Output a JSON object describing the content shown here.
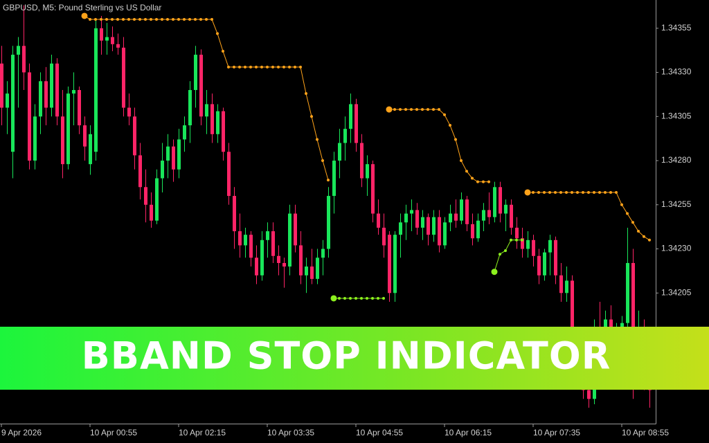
{
  "chart_data": {
    "type": "candlestick",
    "title": "GBPUSD, M5:  Pound Sterling vs US Dollar",
    "bull_color": "#19e65a",
    "bear_color": "#ff2467",
    "ylim": [
      1.34131,
      1.34371
    ],
    "yticks": [
      1.34355,
      {
        "value": 1.3433,
        "label": "1.34330"
      },
      1.34305,
      {
        "value": 1.3428,
        "label": "1.34280"
      },
      1.34255,
      {
        "value": 1.3423,
        "label": "1.34230"
      },
      1.34205
    ],
    "xticks": [
      {
        "value": 0,
        "label": "9 Apr 2026"
      },
      {
        "value": 16,
        "label": "10 Apr 00:55"
      },
      {
        "value": 32,
        "label": "10 Apr 02:15"
      },
      {
        "value": 48,
        "label": "10 Apr 03:35"
      },
      {
        "value": 64,
        "label": "10 Apr 04:55"
      },
      {
        "value": 80,
        "label": "10 Apr 06:15"
      },
      {
        "value": 96,
        "label": "10 Apr 07:35"
      },
      {
        "value": 112,
        "label": "10 Apr 08:55"
      }
    ],
    "candles": [
      [
        1.34335,
        1.34345,
        1.343,
        1.3431
      ],
      [
        1.3431,
        1.34325,
        1.34295,
        1.34318
      ],
      [
        1.34285,
        1.34345,
        1.3427,
        1.3434
      ],
      [
        1.3434,
        1.3435,
        1.3431,
        1.34345
      ],
      [
        1.34345,
        1.34368,
        1.3432,
        1.3433
      ],
      [
        1.3433,
        1.34335,
        1.34275,
        1.3428
      ],
      [
        1.3428,
        1.34312,
        1.34275,
        1.34305
      ],
      [
        1.34305,
        1.3433,
        1.34295,
        1.34325
      ],
      [
        1.34325,
        1.34333,
        1.343,
        1.3431
      ],
      [
        1.3431,
        1.3434,
        1.34305,
        1.34335
      ],
      [
        1.34335,
        1.34338,
        1.343,
        1.34305
      ],
      [
        1.34305,
        1.3432,
        1.3427,
        1.34278
      ],
      [
        1.34278,
        1.34322,
        1.34275,
        1.34318
      ],
      [
        1.34318,
        1.3433,
        1.343,
        1.3432
      ],
      [
        1.3432,
        1.34322,
        1.34295,
        1.343
      ],
      [
        1.343,
        1.34305,
        1.3428,
        1.34288
      ],
      [
        1.34278,
        1.343,
        1.34272,
        1.34295
      ],
      [
        1.34285,
        1.3436,
        1.3428,
        1.34355
      ],
      [
        1.34355,
        1.34362,
        1.3434,
        1.34348
      ],
      [
        1.34348,
        1.34358,
        1.3434,
        1.3435
      ],
      [
        1.3435,
        1.34356,
        1.34342,
        1.34346
      ],
      [
        1.34346,
        1.34352,
        1.3434,
        1.34344
      ],
      [
        1.34344,
        1.3435,
        1.34305,
        1.3431
      ],
      [
        1.3431,
        1.34318,
        1.343,
        1.34305
      ],
      [
        1.34305,
        1.3431,
        1.34275,
        1.34283
      ],
      [
        1.34283,
        1.3429,
        1.34258,
        1.34265
      ],
      [
        1.34265,
        1.34275,
        1.34245,
        1.34255
      ],
      [
        1.34255,
        1.34262,
        1.34242,
        1.34246
      ],
      [
        1.34246,
        1.34275,
        1.34244,
        1.3427
      ],
      [
        1.3427,
        1.3429,
        1.34262,
        1.3428
      ],
      [
        1.3428,
        1.34295,
        1.3427,
        1.34288
      ],
      [
        1.34288,
        1.34292,
        1.34268,
        1.34275
      ],
      [
        1.34275,
        1.34298,
        1.3427,
        1.34292
      ],
      [
        1.34292,
        1.34305,
        1.34285,
        1.343
      ],
      [
        1.343,
        1.34325,
        1.3429,
        1.3432
      ],
      [
        1.3432,
        1.34345,
        1.3431,
        1.3434
      ],
      [
        1.3434,
        1.34343,
        1.343,
        1.34305
      ],
      [
        1.34305,
        1.3432,
        1.34295,
        1.34312
      ],
      [
        1.34312,
        1.34318,
        1.3429,
        1.34295
      ],
      [
        1.34295,
        1.34312,
        1.3429,
        1.34308
      ],
      [
        1.34308,
        1.3431,
        1.3428,
        1.34285
      ],
      [
        1.34285,
        1.3429,
        1.34255,
        1.3426
      ],
      [
        1.3426,
        1.34265,
        1.3423,
        1.3424
      ],
      [
        1.3424,
        1.3425,
        1.34225,
        1.34232
      ],
      [
        1.34232,
        1.34242,
        1.34225,
        1.34238
      ],
      [
        1.34238,
        1.3424,
        1.3422,
        1.34225
      ],
      [
        1.34225,
        1.34232,
        1.3421,
        1.34215
      ],
      [
        1.34215,
        1.3424,
        1.34212,
        1.34235
      ],
      [
        1.34235,
        1.34245,
        1.34225,
        1.3424
      ],
      [
        1.3424,
        1.34245,
        1.34222,
        1.34226
      ],
      [
        1.34226,
        1.34232,
        1.34215,
        1.34222
      ],
      [
        1.34222,
        1.34225,
        1.34208,
        1.3422
      ],
      [
        1.3422,
        1.34255,
        1.34215,
        1.3425
      ],
      [
        1.3425,
        1.34255,
        1.34228,
        1.34232
      ],
      [
        1.34232,
        1.3424,
        1.3421,
        1.34215
      ],
      [
        1.34215,
        1.34225,
        1.34205,
        1.3422
      ],
      [
        1.3422,
        1.3423,
        1.3421,
        1.34213
      ],
      [
        1.34213,
        1.3423,
        1.3421,
        1.34225
      ],
      [
        1.34225,
        1.34235,
        1.34215,
        1.3423
      ],
      [
        1.3423,
        1.34265,
        1.34225,
        1.3426
      ],
      [
        1.3426,
        1.34285,
        1.3425,
        1.3428
      ],
      [
        1.3428,
        1.34298,
        1.3427,
        1.3429
      ],
      [
        1.3429,
        1.34305,
        1.3428,
        1.34298
      ],
      [
        1.34298,
        1.34318,
        1.3429,
        1.34312
      ],
      [
        1.34312,
        1.34315,
        1.34285,
        1.3429
      ],
      [
        1.3429,
        1.34295,
        1.34265,
        1.3427
      ],
      [
        1.3427,
        1.34283,
        1.3426,
        1.34278
      ],
      [
        1.34278,
        1.3428,
        1.34245,
        1.3425
      ],
      [
        1.3425,
        1.34258,
        1.34238,
        1.34242
      ],
      [
        1.34242,
        1.3425,
        1.34225,
        1.34232
      ],
      [
        1.34238,
        1.3424,
        1.342,
        1.34205
      ],
      [
        1.34205,
        1.3424,
        1.342,
        1.34238
      ],
      [
        1.34238,
        1.3425,
        1.34225,
        1.34245
      ],
      [
        1.34245,
        1.34255,
        1.34235,
        1.3425
      ],
      [
        1.3425,
        1.34258,
        1.3424,
        1.34252
      ],
      [
        1.34252,
        1.34256,
        1.34238,
        1.34242
      ],
      [
        1.34242,
        1.34252,
        1.34235,
        1.34248
      ],
      [
        1.34248,
        1.3425,
        1.34232,
        1.34238
      ],
      [
        1.34238,
        1.34252,
        1.34234,
        1.34248
      ],
      [
        1.34248,
        1.34252,
        1.34228,
        1.34232
      ],
      [
        1.34232,
        1.34248,
        1.3423,
        1.34245
      ],
      [
        1.34245,
        1.34255,
        1.3424,
        1.3425
      ],
      [
        1.3425,
        1.34258,
        1.34242,
        1.34246
      ],
      [
        1.34246,
        1.34262,
        1.34244,
        1.34258
      ],
      [
        1.34258,
        1.3426,
        1.3424,
        1.34244
      ],
      [
        1.34244,
        1.3425,
        1.34232,
        1.34236
      ],
      [
        1.34236,
        1.3425,
        1.34234,
        1.34246
      ],
      [
        1.34246,
        1.34256,
        1.3424,
        1.34252
      ],
      [
        1.34252,
        1.34262,
        1.34244,
        1.34248
      ],
      [
        1.34248,
        1.34268,
        1.34245,
        1.34265
      ],
      [
        1.34265,
        1.34268,
        1.34245,
        1.3425
      ],
      [
        1.3425,
        1.34258,
        1.3424,
        1.34255
      ],
      [
        1.34255,
        1.34258,
        1.34238,
        1.34242
      ],
      [
        1.34242,
        1.34248,
        1.3423,
        1.34236
      ],
      [
        1.34236,
        1.34242,
        1.34225,
        1.3423
      ],
      [
        1.3423,
        1.3424,
        1.34225,
        1.34235
      ],
      [
        1.34235,
        1.34238,
        1.3422,
        1.34226
      ],
      [
        1.34226,
        1.3423,
        1.3421,
        1.34215
      ],
      [
        1.34215,
        1.3423,
        1.34212,
        1.34228
      ],
      [
        1.34228,
        1.34238,
        1.34215,
        1.34235
      ],
      [
        1.34235,
        1.34237,
        1.3421,
        1.34215
      ],
      [
        1.34215,
        1.34222,
        1.342,
        1.34205
      ],
      [
        1.34205,
        1.3422,
        1.342,
        1.34212
      ],
      [
        1.34212,
        1.34215,
        1.3417,
        1.34175
      ],
      [
        1.34175,
        1.34185,
        1.34155,
        1.3416
      ],
      [
        1.3416,
        1.3417,
        1.34145,
        1.3415
      ],
      [
        1.3415,
        1.34165,
        1.3414,
        1.34145
      ],
      [
        1.34145,
        1.3419,
        1.34142,
        1.34185
      ],
      [
        1.34185,
        1.342,
        1.3417,
        1.34178
      ],
      [
        1.34178,
        1.34195,
        1.34172,
        1.3419
      ],
      [
        1.3419,
        1.34198,
        1.34175,
        1.34182
      ],
      [
        1.34182,
        1.34188,
        1.3417,
        1.34185
      ],
      [
        1.34185,
        1.34192,
        1.34178,
        1.34188
      ],
      [
        1.34188,
        1.34242,
        1.34185,
        1.34222
      ],
      [
        1.34222,
        1.3423,
        1.34145,
        1.3418
      ],
      [
        1.3418,
        1.34195,
        1.3416,
        1.34185
      ],
      [
        1.34185,
        1.3419,
        1.3415,
        1.3417
      ],
      [
        1.3417,
        1.34175,
        1.3414,
        1.3415
      ]
    ],
    "upper_stop": {
      "color": "#ffa31a",
      "values": [
        null,
        null,
        null,
        null,
        null,
        null,
        null,
        null,
        null,
        null,
        null,
        null,
        null,
        null,
        null,
        1.34362,
        1.3436,
        1.3436,
        1.3436,
        1.3436,
        1.3436,
        1.3436,
        1.3436,
        1.3436,
        1.3436,
        1.3436,
        1.3436,
        1.3436,
        1.3436,
        1.3436,
        1.3436,
        1.3436,
        1.3436,
        1.3436,
        1.3436,
        1.3436,
        1.3436,
        1.3436,
        1.3436,
        1.34352,
        1.34342,
        1.34333,
        1.34333,
        1.34333,
        1.34333,
        1.34333,
        1.34333,
        1.34333,
        1.34333,
        1.34333,
        1.34333,
        1.34333,
        1.34333,
        1.34333,
        1.34333,
        1.34318,
        1.34305,
        1.34292,
        1.3428,
        1.34269,
        null,
        null,
        null,
        null,
        null,
        null,
        null,
        null,
        null,
        null,
        1.34309,
        1.34309,
        1.34309,
        1.34309,
        1.34309,
        1.34309,
        1.34309,
        1.34309,
        1.34309,
        1.34309,
        1.34306,
        1.343,
        1.34292,
        1.3428,
        1.34274,
        1.3427,
        1.34268,
        1.34268,
        1.34268,
        null,
        null,
        null,
        null,
        null,
        null,
        1.34262,
        1.34262,
        1.34262,
        1.34262,
        1.34262,
        1.34262,
        1.34262,
        1.34262,
        1.34262,
        1.34262,
        1.34262,
        1.34262,
        1.34262,
        1.34262,
        1.34262,
        1.34262,
        1.34262,
        1.34255,
        1.3425,
        1.34245,
        1.3424,
        1.34237,
        1.34235
      ]
    },
    "lower_stop": {
      "color": "#8cf01e",
      "values": [
        null,
        null,
        null,
        null,
        null,
        null,
        null,
        null,
        null,
        null,
        null,
        null,
        null,
        null,
        null,
        null,
        null,
        null,
        null,
        null,
        null,
        null,
        null,
        null,
        null,
        null,
        null,
        null,
        null,
        null,
        null,
        null,
        null,
        null,
        null,
        null,
        null,
        null,
        null,
        null,
        null,
        null,
        null,
        null,
        null,
        null,
        null,
        null,
        null,
        null,
        null,
        null,
        null,
        null,
        null,
        null,
        null,
        null,
        null,
        null,
        1.34202,
        1.34202,
        1.34202,
        1.34202,
        1.34202,
        1.34202,
        1.34202,
        1.34202,
        1.34202,
        1.34202,
        null,
        null,
        null,
        null,
        null,
        null,
        null,
        null,
        null,
        null,
        null,
        null,
        null,
        null,
        null,
        null,
        null,
        null,
        null,
        1.34217,
        1.34227,
        1.34229,
        1.34235,
        1.34235,
        1.34235,
        null,
        null,
        null,
        null,
        null,
        null,
        null,
        null,
        null,
        null,
        null,
        null,
        null,
        null,
        null,
        null,
        null,
        null,
        null,
        null,
        null,
        null,
        null
      ]
    }
  },
  "banner": {
    "text": "BBAND STOP INDICATOR"
  }
}
